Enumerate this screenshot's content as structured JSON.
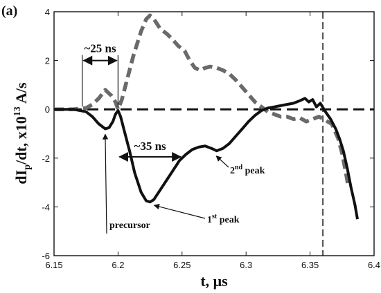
{
  "panel_label": "(a)",
  "chart_data": {
    "type": "line",
    "xlabel": "t, μs",
    "ylabel_parts": {
      "main": "dI",
      "sub": "p",
      "mid": "/dt, x10",
      "sup": "13",
      "unit": " A/s"
    },
    "xlim": [
      6.15,
      6.4
    ],
    "ylim": [
      -6,
      4
    ],
    "x_ticks": [
      "6.15",
      "6.2",
      "6.25",
      "6.3",
      "6.35",
      "6.4"
    ],
    "y_ticks": [
      "-6",
      "-4",
      "-2",
      "0",
      "2",
      "4"
    ],
    "grid": false,
    "series": [
      {
        "style": "dashed-gray",
        "points": [
          [
            6.15,
            0
          ],
          [
            6.165,
            0
          ],
          [
            6.175,
            0.05
          ],
          [
            6.18,
            0.2
          ],
          [
            6.185,
            0.45
          ],
          [
            6.19,
            0.8
          ],
          [
            6.195,
            0.55
          ],
          [
            6.198,
            0.3
          ],
          [
            6.2,
            0.0
          ],
          [
            6.203,
            0.4
          ],
          [
            6.207,
            1.2
          ],
          [
            6.212,
            2.2
          ],
          [
            6.218,
            3.2
          ],
          [
            6.222,
            3.7
          ],
          [
            6.225,
            3.85
          ],
          [
            6.228,
            3.7
          ],
          [
            6.233,
            3.3
          ],
          [
            6.238,
            3.1
          ],
          [
            6.242,
            2.9
          ],
          [
            6.247,
            2.6
          ],
          [
            6.252,
            2.4
          ],
          [
            6.256,
            2.0
          ],
          [
            6.26,
            1.7
          ],
          [
            6.264,
            1.6
          ],
          [
            6.268,
            1.7
          ],
          [
            6.272,
            1.75
          ],
          [
            6.277,
            1.7
          ],
          [
            6.282,
            1.6
          ],
          [
            6.287,
            1.45
          ],
          [
            6.292,
            1.2
          ],
          [
            6.297,
            0.9
          ],
          [
            6.302,
            0.6
          ],
          [
            6.307,
            0.3
          ],
          [
            6.312,
            0.1
          ],
          [
            6.317,
            -0.1
          ],
          [
            6.322,
            -0.2
          ],
          [
            6.327,
            -0.3
          ],
          [
            6.332,
            -0.3
          ],
          [
            6.337,
            -0.4
          ],
          [
            6.342,
            -0.35
          ],
          [
            6.347,
            -0.5
          ],
          [
            6.352,
            -0.4
          ],
          [
            6.357,
            -0.3
          ],
          [
            6.362,
            -0.45
          ],
          [
            6.367,
            -0.6
          ],
          [
            6.372,
            -1.2
          ],
          [
            6.375,
            -1.8
          ],
          [
            6.378,
            -2.6
          ],
          [
            6.38,
            -3.2
          ]
        ]
      },
      {
        "style": "solid-black",
        "points": [
          [
            6.15,
            0
          ],
          [
            6.165,
            0
          ],
          [
            6.175,
            -0.1
          ],
          [
            6.18,
            -0.3
          ],
          [
            6.185,
            -0.6
          ],
          [
            6.19,
            -0.8
          ],
          [
            6.193,
            -0.75
          ],
          [
            6.196,
            -0.5
          ],
          [
            6.198,
            -0.2
          ],
          [
            6.2,
            -0.05
          ],
          [
            6.202,
            -0.3
          ],
          [
            6.205,
            -0.9
          ],
          [
            6.209,
            -1.7
          ],
          [
            6.213,
            -2.6
          ],
          [
            6.218,
            -3.4
          ],
          [
            6.222,
            -3.75
          ],
          [
            6.225,
            -3.8
          ],
          [
            6.228,
            -3.7
          ],
          [
            6.233,
            -3.3
          ],
          [
            6.238,
            -2.9
          ],
          [
            6.243,
            -2.5
          ],
          [
            6.248,
            -2.1
          ],
          [
            6.253,
            -1.85
          ],
          [
            6.258,
            -1.65
          ],
          [
            6.263,
            -1.55
          ],
          [
            6.268,
            -1.5
          ],
          [
            6.273,
            -1.6
          ],
          [
            6.277,
            -1.7
          ],
          [
            6.282,
            -1.6
          ],
          [
            6.287,
            -1.4
          ],
          [
            6.292,
            -1.1
          ],
          [
            6.297,
            -0.8
          ],
          [
            6.302,
            -0.5
          ],
          [
            6.307,
            -0.25
          ],
          [
            6.312,
            -0.05
          ],
          [
            6.317,
            0.05
          ],
          [
            6.322,
            0.1
          ],
          [
            6.327,
            0.15
          ],
          [
            6.332,
            0.2
          ],
          [
            6.337,
            0.25
          ],
          [
            6.342,
            0.35
          ],
          [
            6.346,
            0.45
          ],
          [
            6.349,
            0.3
          ],
          [
            6.352,
            0.4
          ],
          [
            6.355,
            0.1
          ],
          [
            6.358,
            0.25
          ],
          [
            6.362,
            -0.1
          ],
          [
            6.366,
            -0.4
          ],
          [
            6.37,
            -0.8
          ],
          [
            6.373,
            -1.2
          ],
          [
            6.376,
            -1.7
          ],
          [
            6.379,
            -2.4
          ],
          [
            6.382,
            -3.2
          ],
          [
            6.385,
            -3.9
          ],
          [
            6.387,
            -4.5
          ]
        ]
      }
    ],
    "zero_line_style": "dashed",
    "vertical_line": {
      "x": 6.36,
      "style": "dashed"
    },
    "annotations": [
      {
        "text": "~25 ns",
        "from_x": 6.172,
        "to_x": 6.2,
        "y": 2.0
      },
      {
        "text": "~35 ns",
        "from_x": 6.2,
        "to_x": 6.25,
        "y": -1.95
      },
      {
        "text": "precursor",
        "arrow_x": 6.19,
        "arrow_y": -0.85
      },
      {
        "text": "1",
        "sup": "st",
        "after": " peak",
        "arrow_x": 6.226,
        "arrow_y": -3.85
      },
      {
        "text": "2",
        "sup": "nd",
        "after": " peak",
        "arrow_x": 6.274,
        "arrow_y": -1.8
      }
    ]
  }
}
